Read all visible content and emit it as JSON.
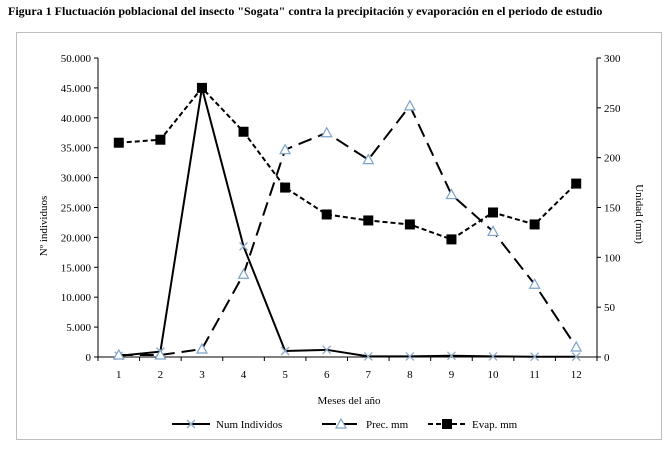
{
  "figure_title": "Figura 1 Fluctuación poblacional del insecto \"Sogata\" contra la precipitación y evaporación en el periodo de estudio",
  "chart_data": {
    "type": "line",
    "title": "",
    "xlabel": "Meses del año",
    "ylabel": "Nº individuos",
    "y2label": "Unidad (mm)",
    "categories": [
      "1",
      "2",
      "3",
      "4",
      "5",
      "6",
      "7",
      "8",
      "9",
      "10",
      "11",
      "12"
    ],
    "ylim": [
      0,
      50000
    ],
    "y2lim": [
      0,
      300
    ],
    "yticks": [
      "0",
      "5.000",
      "10.000",
      "15.000",
      "20.000",
      "25.000",
      "30.000",
      "35.000",
      "40.000",
      "45.000",
      "50.000"
    ],
    "y2ticks": [
      "0",
      "50",
      "100",
      "150",
      "200",
      "250",
      "300"
    ],
    "grid": false,
    "legend_position": "bottom",
    "series": [
      {
        "name": "Num Individos",
        "axis": "left",
        "marker": "x",
        "style": "solid",
        "color": "#000000",
        "values": [
          200,
          900,
          45000,
          18500,
          1000,
          1200,
          100,
          100,
          200,
          100,
          50,
          50
        ]
      },
      {
        "name": "Prec. mm",
        "axis": "right",
        "marker": "triangle",
        "style": "long-dash",
        "color": "#000000",
        "marker_color": "#7fa3c8",
        "values": [
          2,
          2,
          8,
          83,
          208,
          225,
          198,
          252,
          163,
          126,
          73,
          10
        ]
      },
      {
        "name": "Evap. mm",
        "axis": "right",
        "marker": "square",
        "style": "short-dash",
        "color": "#000000",
        "values": [
          215,
          218,
          270,
          226,
          170,
          143,
          137,
          133,
          118,
          145,
          133,
          174
        ]
      }
    ]
  }
}
